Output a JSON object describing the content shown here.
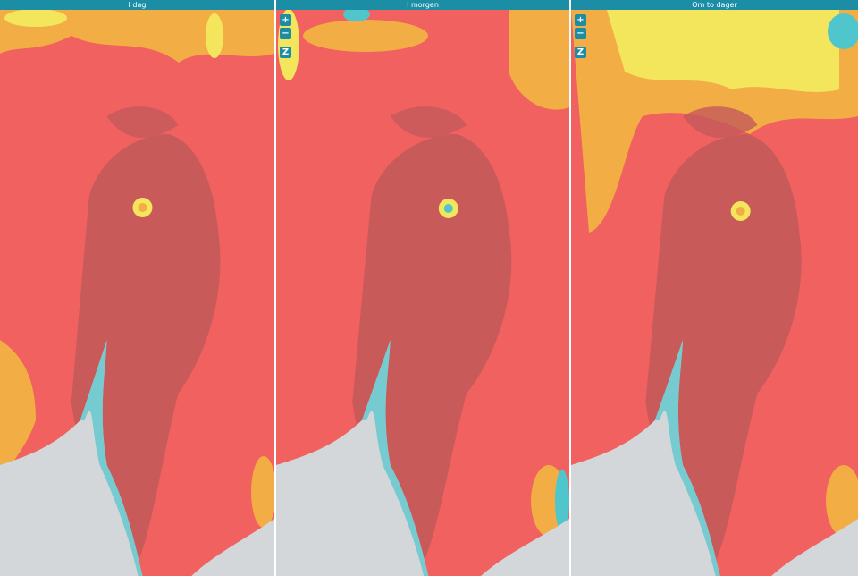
{
  "panels": [
    {
      "title": "I dag"
    },
    {
      "title": "I morgen",
      "controls": [
        "+",
        "−",
        "Z"
      ]
    },
    {
      "title": "Om to dager",
      "controls": [
        "+",
        "−",
        "Z"
      ]
    }
  ]
}
